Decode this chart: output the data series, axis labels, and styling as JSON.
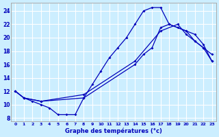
{
  "title": "Graphe des températures (°c)",
  "bg_color": "#cceeff",
  "grid_color": "#ffffff",
  "line_color": "#0000bb",
  "xlim": [
    -0.5,
    23.5
  ],
  "ylim": [
    7.5,
    25.2
  ],
  "xticks": [
    0,
    1,
    2,
    3,
    4,
    5,
    6,
    7,
    8,
    9,
    10,
    11,
    12,
    13,
    14,
    15,
    16,
    17,
    18,
    19,
    20,
    21,
    22,
    23
  ],
  "yticks": [
    8,
    10,
    12,
    14,
    16,
    18,
    20,
    22,
    24
  ],
  "line1_x": [
    0,
    1,
    2,
    3,
    4,
    5,
    6,
    7,
    8,
    9,
    10,
    11,
    12,
    13,
    14,
    15,
    16,
    17,
    18,
    19,
    20,
    21,
    22,
    23
  ],
  "line1_y": [
    12,
    11,
    10.5,
    10,
    9.5,
    8.5,
    8.5,
    8.5,
    11,
    13,
    15,
    17,
    18.5,
    20,
    22,
    24,
    24.5,
    24.5,
    22,
    21.5,
    21,
    19.5,
    18.5,
    17.5
  ],
  "line2_x": [
    0,
    1,
    3,
    8,
    14,
    15,
    16,
    17,
    18,
    20,
    21,
    22,
    23
  ],
  "line2_y": [
    12,
    11,
    10.5,
    11,
    16,
    17.5,
    18.5,
    21.5,
    22,
    21,
    20.5,
    19,
    16.5
  ],
  "line3_x": [
    0,
    1,
    3,
    8,
    14,
    17,
    19,
    20,
    21,
    22,
    23
  ],
  "line3_y": [
    12,
    11,
    10.5,
    11.5,
    16.5,
    21,
    22,
    20.5,
    19.5,
    18.5,
    16.5
  ]
}
